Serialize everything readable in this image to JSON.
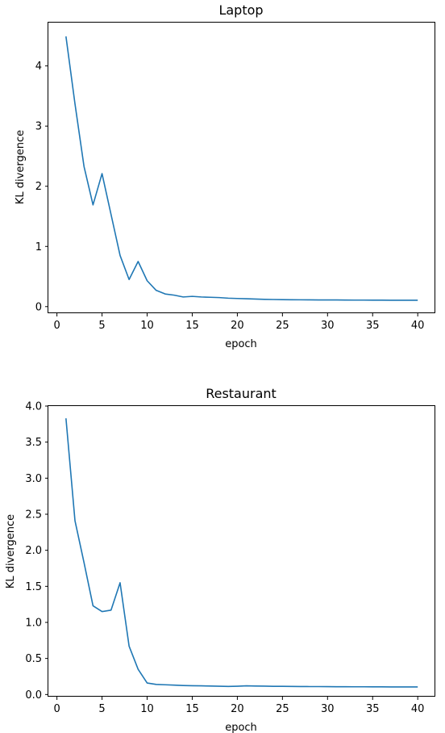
{
  "colors": {
    "series": "#1f77b4",
    "axes": "#000000"
  },
  "chart_data": [
    {
      "type": "line",
      "title": "Laptop",
      "xlabel": "epoch",
      "ylabel": "KL divergence",
      "xlim": [
        -0.95,
        41.95
      ],
      "ylim": [
        -0.11,
        4.72
      ],
      "xticks": [
        0,
        5,
        10,
        15,
        20,
        25,
        30,
        35,
        40
      ],
      "yticks": [
        0,
        1,
        2,
        3,
        4
      ],
      "xtick_labels": [
        "0",
        "5",
        "10",
        "15",
        "20",
        "25",
        "30",
        "35",
        "40"
      ],
      "ytick_labels": [
        "0",
        "1",
        "2",
        "3",
        "4"
      ],
      "grid": false,
      "series": [
        {
          "x": [
            1,
            2,
            3,
            4,
            5,
            6,
            7,
            8,
            9,
            10,
            11,
            12,
            13,
            14,
            15,
            16,
            17,
            18,
            19,
            20,
            21,
            22,
            23,
            24,
            25,
            26,
            27,
            28,
            29,
            30,
            31,
            32,
            33,
            34,
            35,
            36,
            37,
            38,
            39,
            40
          ],
          "y": [
            4.49,
            3.37,
            2.33,
            1.69,
            2.21,
            1.53,
            0.85,
            0.45,
            0.75,
            0.43,
            0.27,
            0.21,
            0.19,
            0.16,
            0.17,
            0.16,
            0.155,
            0.15,
            0.14,
            0.135,
            0.13,
            0.125,
            0.12,
            0.118,
            0.116,
            0.114,
            0.113,
            0.112,
            0.111,
            0.11,
            0.11,
            0.109,
            0.108,
            0.108,
            0.107,
            0.107,
            0.106,
            0.106,
            0.106,
            0.105
          ]
        }
      ]
    },
    {
      "type": "line",
      "title": "Restaurant",
      "xlabel": "epoch",
      "ylabel": "KL divergence",
      "xlim": [
        -0.95,
        41.95
      ],
      "ylim": [
        -0.03,
        4.0
      ],
      "xticks": [
        0,
        5,
        10,
        15,
        20,
        25,
        30,
        35,
        40
      ],
      "yticks": [
        0.0,
        0.5,
        1.0,
        1.5,
        2.0,
        2.5,
        3.0,
        3.5,
        4.0
      ],
      "xtick_labels": [
        "0",
        "5",
        "10",
        "15",
        "20",
        "25",
        "30",
        "35",
        "40"
      ],
      "ytick_labels": [
        "0.0",
        "0.5",
        "1.0",
        "1.5",
        "2.0",
        "2.5",
        "3.0",
        "3.5",
        "4.0"
      ],
      "grid": false,
      "series": [
        {
          "x": [
            1,
            2,
            3,
            4,
            5,
            6,
            7,
            8,
            9,
            10,
            11,
            12,
            13,
            14,
            15,
            16,
            17,
            18,
            19,
            20,
            21,
            22,
            23,
            24,
            25,
            26,
            27,
            28,
            29,
            30,
            31,
            32,
            33,
            34,
            35,
            36,
            37,
            38,
            39,
            40
          ],
          "y": [
            3.83,
            2.41,
            1.83,
            1.23,
            1.15,
            1.17,
            1.55,
            0.67,
            0.35,
            0.16,
            0.14,
            0.135,
            0.13,
            0.125,
            0.122,
            0.12,
            0.118,
            0.115,
            0.112,
            0.115,
            0.12,
            0.118,
            0.116,
            0.114,
            0.113,
            0.112,
            0.111,
            0.11,
            0.11,
            0.109,
            0.108,
            0.108,
            0.107,
            0.107,
            0.106,
            0.106,
            0.105,
            0.105,
            0.105,
            0.105
          ]
        }
      ]
    }
  ]
}
